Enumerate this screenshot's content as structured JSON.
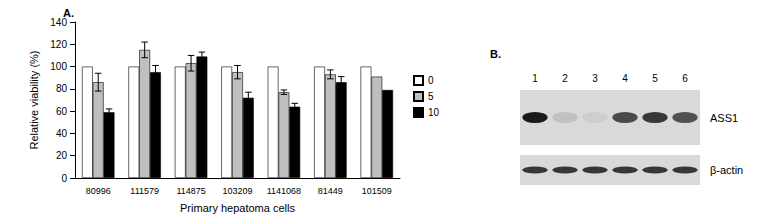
{
  "chart_data": {
    "type": "bar",
    "title": "A.",
    "x_label": "Primary hepatoma cells",
    "y_label": "Relative viability (%)",
    "categories": [
      "80996",
      "111579",
      "114875",
      "103209",
      "1141068",
      "81449",
      "101509"
    ],
    "series": [
      {
        "name": "0",
        "color": "#ffffff",
        "values": [
          100,
          100,
          100,
          100,
          100,
          100,
          100
        ],
        "errors": [
          null,
          null,
          null,
          null,
          null,
          null,
          null
        ]
      },
      {
        "name": "5",
        "color": "#bfbfbf",
        "values": [
          86,
          115,
          103,
          95,
          77,
          93,
          91
        ],
        "errors": [
          8,
          7,
          7,
          6,
          2,
          4,
          null
        ]
      },
      {
        "name": "10",
        "color": "#000000",
        "values": [
          59,
          95,
          109,
          72,
          64,
          86,
          79
        ],
        "errors": [
          3,
          6,
          4,
          5,
          3,
          5,
          null
        ]
      }
    ],
    "ylim": [
      0,
      140
    ],
    "yticks": [
      0,
      20,
      40,
      60,
      80,
      100,
      120,
      140
    ],
    "grid": false,
    "legend": "right"
  },
  "panel_b": {
    "label": "B.",
    "lanes": [
      "1",
      "2",
      "3",
      "4",
      "5",
      "6"
    ],
    "rows": [
      {
        "label": "ASS1",
        "bands": [
          1.0,
          0.12,
          0.06,
          0.75,
          0.85,
          0.72
        ]
      },
      {
        "label": "β-actin",
        "bands": [
          0.85,
          0.85,
          0.85,
          0.85,
          0.85,
          0.85
        ]
      }
    ]
  }
}
